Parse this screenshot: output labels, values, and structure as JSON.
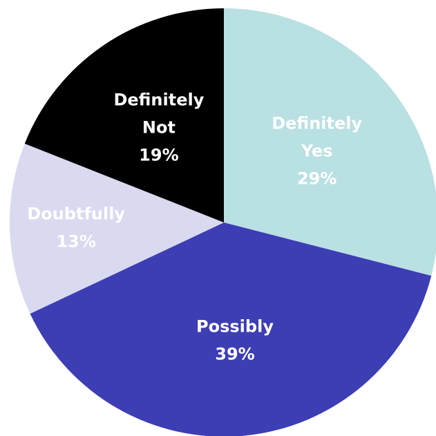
{
  "chart_data": {
    "type": "pie",
    "categories": [
      "Definitely Yes",
      "Possibly",
      "Doubtfully",
      "Definitely Not"
    ],
    "values": [
      29,
      39,
      13,
      19
    ],
    "value_suffix": "%",
    "labels": [
      [
        "Definitely",
        "Yes",
        "29%"
      ],
      [
        "Possibly",
        "39%"
      ],
      [
        "Doubtfully",
        "13%"
      ],
      [
        "Definitely",
        "Not",
        "19%"
      ]
    ],
    "colors": [
      "#b9e0e3",
      "#3d3db4",
      "#d9d9f0",
      "#000000"
    ],
    "label_colors": [
      "#ffffff",
      "#ffffff",
      "#ffffff",
      "#ffffff"
    ],
    "start_angle_deg": 0,
    "direction": "clockwise",
    "title": "",
    "legend": "none"
  }
}
